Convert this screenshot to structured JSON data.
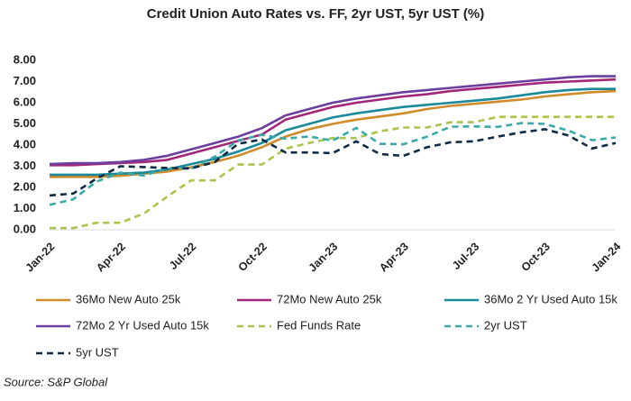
{
  "chart_data": {
    "type": "line",
    "title": "Credit Union Auto Rates vs. FF, 2yr UST, 5yr UST (%)",
    "source": "Source: S&P Global",
    "categories": [
      "Jan-22",
      null,
      null,
      "Apr-22",
      null,
      null,
      "Jul-22",
      null,
      null,
      "Oct-22",
      null,
      null,
      "Jan-23",
      null,
      null,
      "Apr-23",
      null,
      null,
      "Jul-23",
      null,
      null,
      "Oct-23",
      null,
      null,
      "Jan-24"
    ],
    "ylim": [
      0,
      8
    ],
    "yticks": [
      {
        "value": 0,
        "label": "0.00"
      },
      {
        "value": 1,
        "label": "1.00"
      },
      {
        "value": 2,
        "label": "2.00"
      },
      {
        "value": 3,
        "label": "3.00"
      },
      {
        "value": 4,
        "label": "4.00"
      },
      {
        "value": 5,
        "label": "5.00"
      },
      {
        "value": 6,
        "label": "6.00"
      },
      {
        "value": 7,
        "label": "7.00"
      },
      {
        "value": 8,
        "label": "8.00"
      }
    ],
    "grid": false,
    "series": [
      {
        "name": "36Mo New Auto 25k",
        "color": "#d08b2a",
        "dashed": false,
        "values": [
          2.5,
          2.5,
          2.5,
          2.55,
          2.65,
          2.75,
          2.95,
          3.2,
          3.5,
          3.9,
          4.4,
          4.75,
          5.0,
          5.2,
          5.35,
          5.5,
          5.7,
          5.85,
          5.95,
          6.05,
          6.15,
          6.3,
          6.4,
          6.5,
          6.55
        ]
      },
      {
        "name": "72Mo New Auto 25k",
        "color": "#a3267a",
        "dashed": false,
        "values": [
          3.05,
          3.05,
          3.1,
          3.15,
          3.2,
          3.3,
          3.6,
          3.9,
          4.2,
          4.5,
          5.2,
          5.5,
          5.8,
          6.0,
          6.15,
          6.3,
          6.4,
          6.55,
          6.65,
          6.75,
          6.85,
          6.95,
          7.0,
          7.05,
          7.1
        ]
      },
      {
        "name": "36Mo 2 Yr Used Auto 15k",
        "color": "#1a8a9a",
        "dashed": false,
        "values": [
          2.6,
          2.6,
          2.6,
          2.65,
          2.7,
          2.85,
          3.1,
          3.35,
          3.7,
          4.1,
          4.7,
          5.0,
          5.3,
          5.5,
          5.65,
          5.8,
          5.9,
          6.0,
          6.1,
          6.2,
          6.35,
          6.5,
          6.6,
          6.65,
          6.65
        ]
      },
      {
        "name": "72Mo 2 Yr Used Auto 15k",
        "color": "#6a3fa0",
        "dashed": false,
        "values": [
          3.1,
          3.15,
          3.15,
          3.2,
          3.3,
          3.5,
          3.8,
          4.1,
          4.4,
          4.8,
          5.4,
          5.7,
          6.0,
          6.2,
          6.35,
          6.5,
          6.6,
          6.7,
          6.8,
          6.9,
          7.0,
          7.1,
          7.2,
          7.25,
          7.25
        ]
      },
      {
        "name": "Fed Funds Rate",
        "color": "#a8c44a",
        "dashed": true,
        "values": [
          0.08,
          0.08,
          0.33,
          0.33,
          0.77,
          1.58,
          2.33,
          2.33,
          3.08,
          3.08,
          3.83,
          4.1,
          4.33,
          4.33,
          4.65,
          4.83,
          4.83,
          5.08,
          5.08,
          5.33,
          5.33,
          5.33,
          5.33,
          5.33,
          5.33
        ]
      },
      {
        "name": "2yr UST",
        "color": "#3aaaa8",
        "dashed": true,
        "values": [
          1.18,
          1.44,
          2.28,
          2.7,
          2.56,
          2.92,
          2.89,
          3.45,
          4.22,
          4.48,
          4.3,
          4.41,
          4.21,
          4.81,
          4.06,
          4.04,
          4.4,
          4.87,
          4.88,
          4.86,
          5.04,
          5.0,
          4.68,
          4.23,
          4.36
        ]
      },
      {
        "name": "5yr UST",
        "color": "#0f2a44",
        "dashed": true,
        "values": [
          1.62,
          1.71,
          2.42,
          3.0,
          2.96,
          2.92,
          2.9,
          3.2,
          4.06,
          4.27,
          3.65,
          3.65,
          3.62,
          4.18,
          3.58,
          3.49,
          3.9,
          4.13,
          4.18,
          4.4,
          4.6,
          4.75,
          4.45,
          3.84,
          4.1
        ]
      }
    ]
  }
}
